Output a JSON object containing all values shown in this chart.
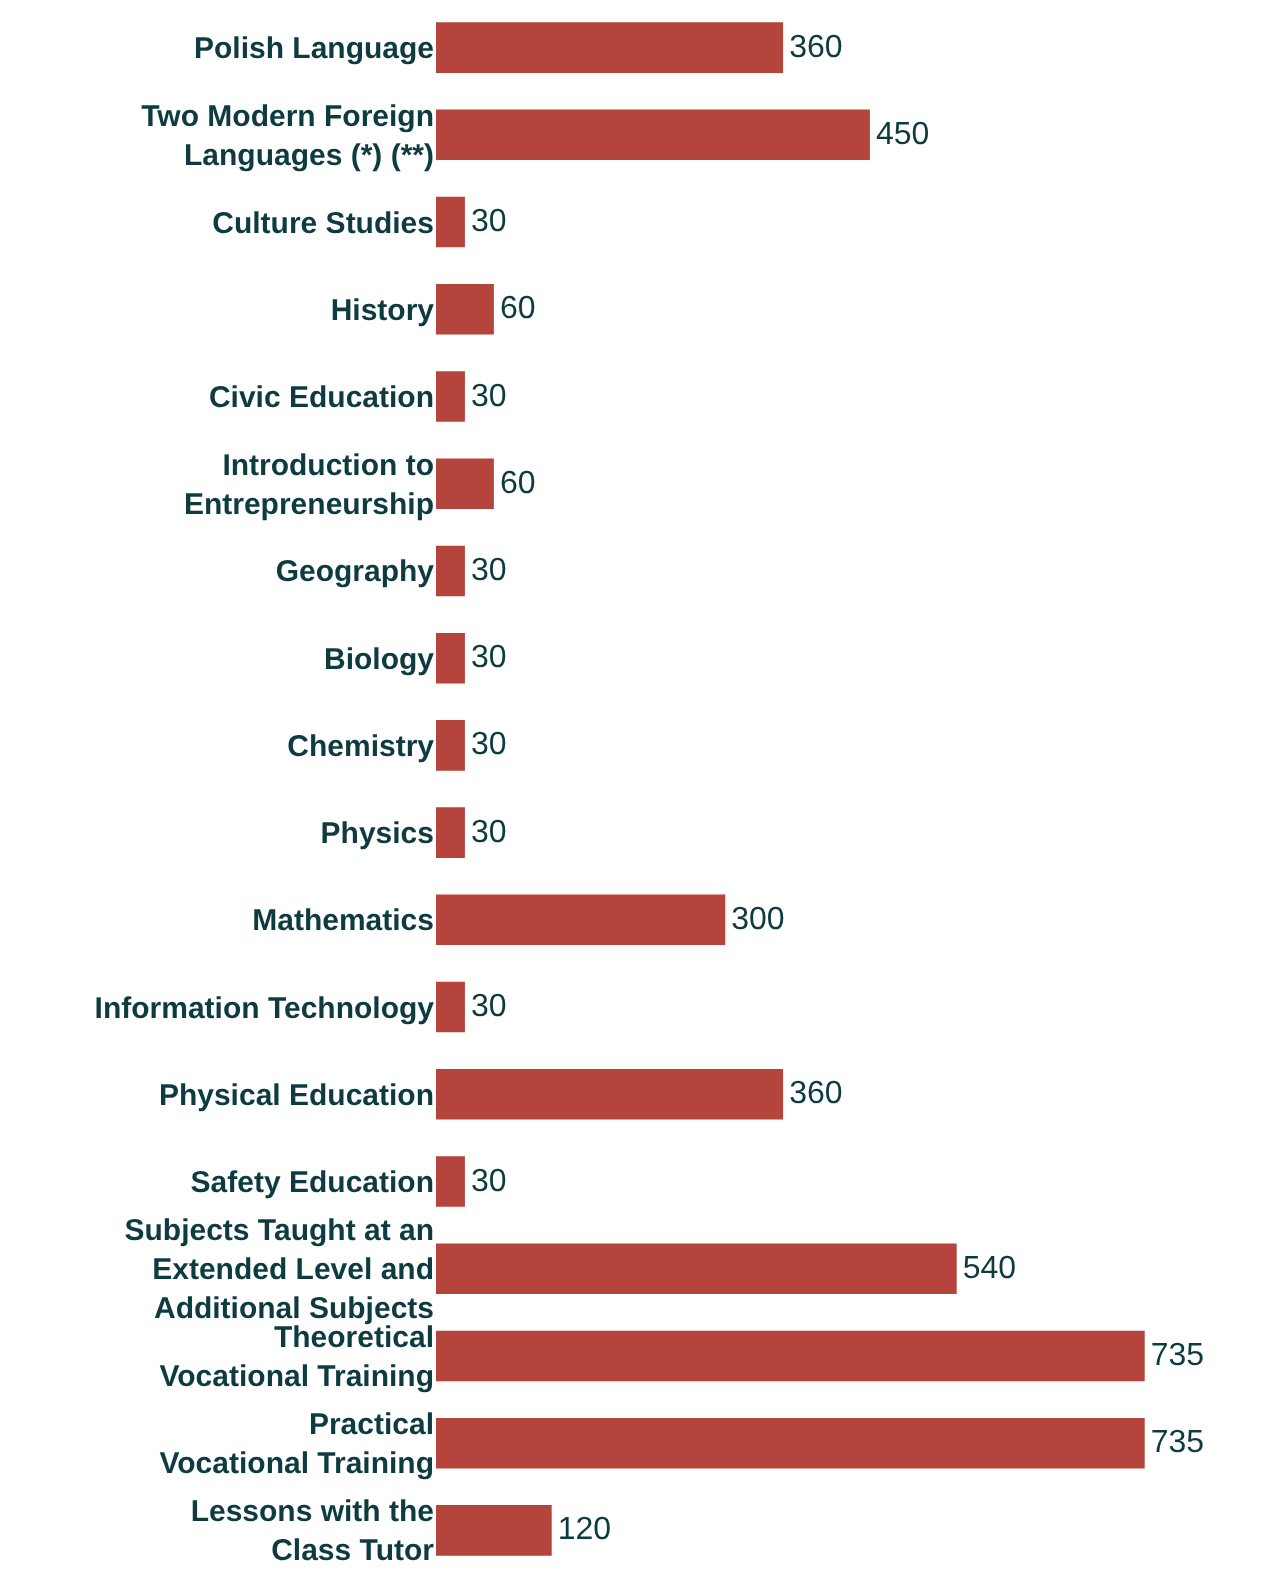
{
  "chart_data": {
    "type": "bar",
    "orientation": "horizontal",
    "data_labels": true,
    "categories": [
      "Polish Language",
      "Two Modern Foreign\nLanguages (*) (**)",
      "Culture Studies",
      "History",
      "Civic Education",
      "Introduction to\nEntrepreneurship",
      "Geography",
      "Biology",
      "Chemistry",
      "Physics",
      "Mathematics",
      "Information Technology",
      "Physical Education",
      "Safety Education",
      "Subjects Taught at an\nExtended Level and\nAdditional Subjects",
      "Theoretical\nVocational Training",
      "Practical\nVocational Training",
      "Lessons with the\nClass Tutor"
    ],
    "values": [
      360,
      450,
      30,
      60,
      30,
      60,
      30,
      30,
      30,
      30,
      300,
      30,
      360,
      30,
      540,
      735,
      735,
      120
    ],
    "color": "#b5443c"
  }
}
